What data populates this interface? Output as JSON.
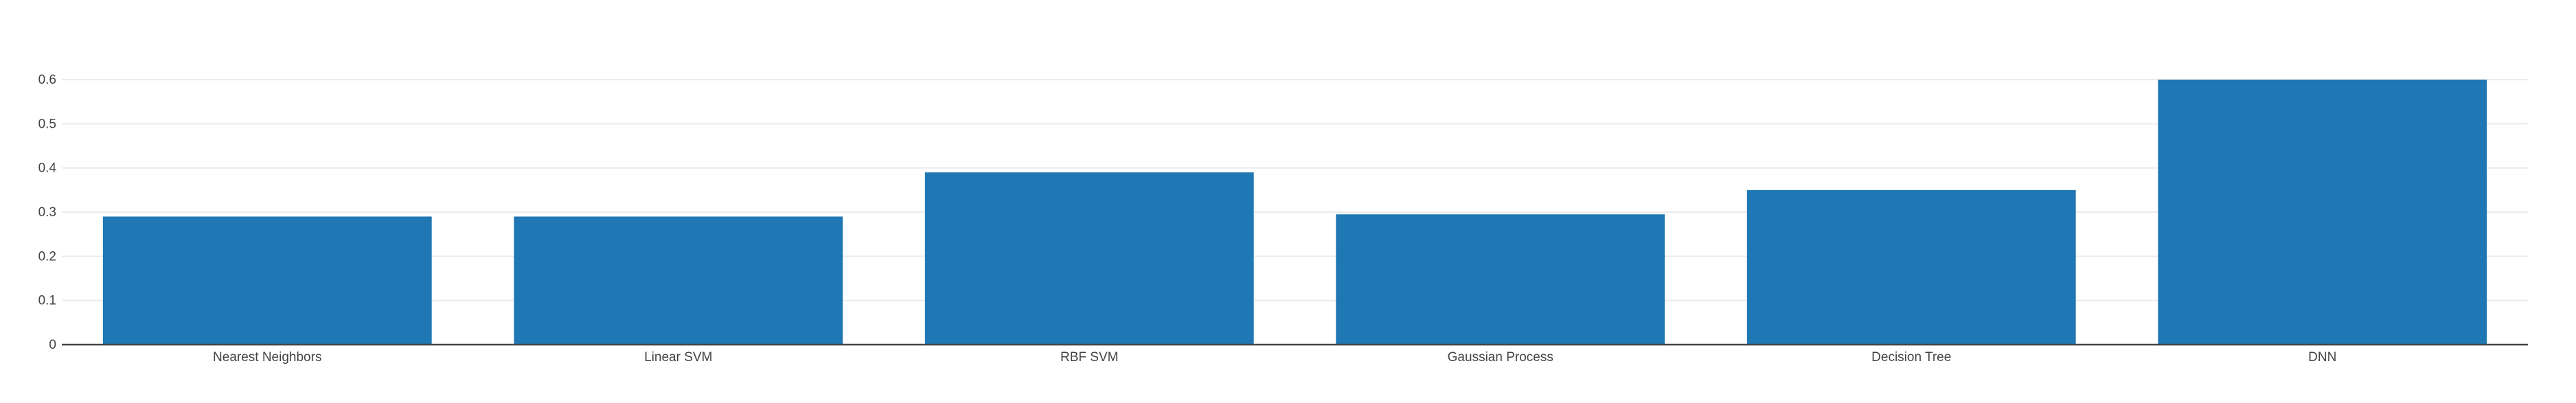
{
  "chart_data": {
    "type": "bar",
    "title": "",
    "xlabel": "",
    "ylabel": "",
    "categories": [
      "Nearest Neighbors",
      "Linear SVM",
      "RBF SVM",
      "Gaussian Process",
      "Decision Tree",
      "DNN"
    ],
    "values": [
      0.29,
      0.29,
      0.39,
      0.295,
      0.35,
      0.6
    ],
    "ylim": [
      0,
      0.6
    ],
    "yticks": [
      0,
      0.1,
      0.2,
      0.3,
      0.4,
      0.5,
      0.6
    ],
    "ytick_labels": [
      "0",
      "0.1",
      "0.2",
      "0.3",
      "0.4",
      "0.5",
      "0.6"
    ],
    "grid": true,
    "legend": "none",
    "colors": {
      "bar": "#1f77b4",
      "grid": "#ebebeb",
      "axis": "#444444",
      "background": "#ffffff"
    }
  }
}
